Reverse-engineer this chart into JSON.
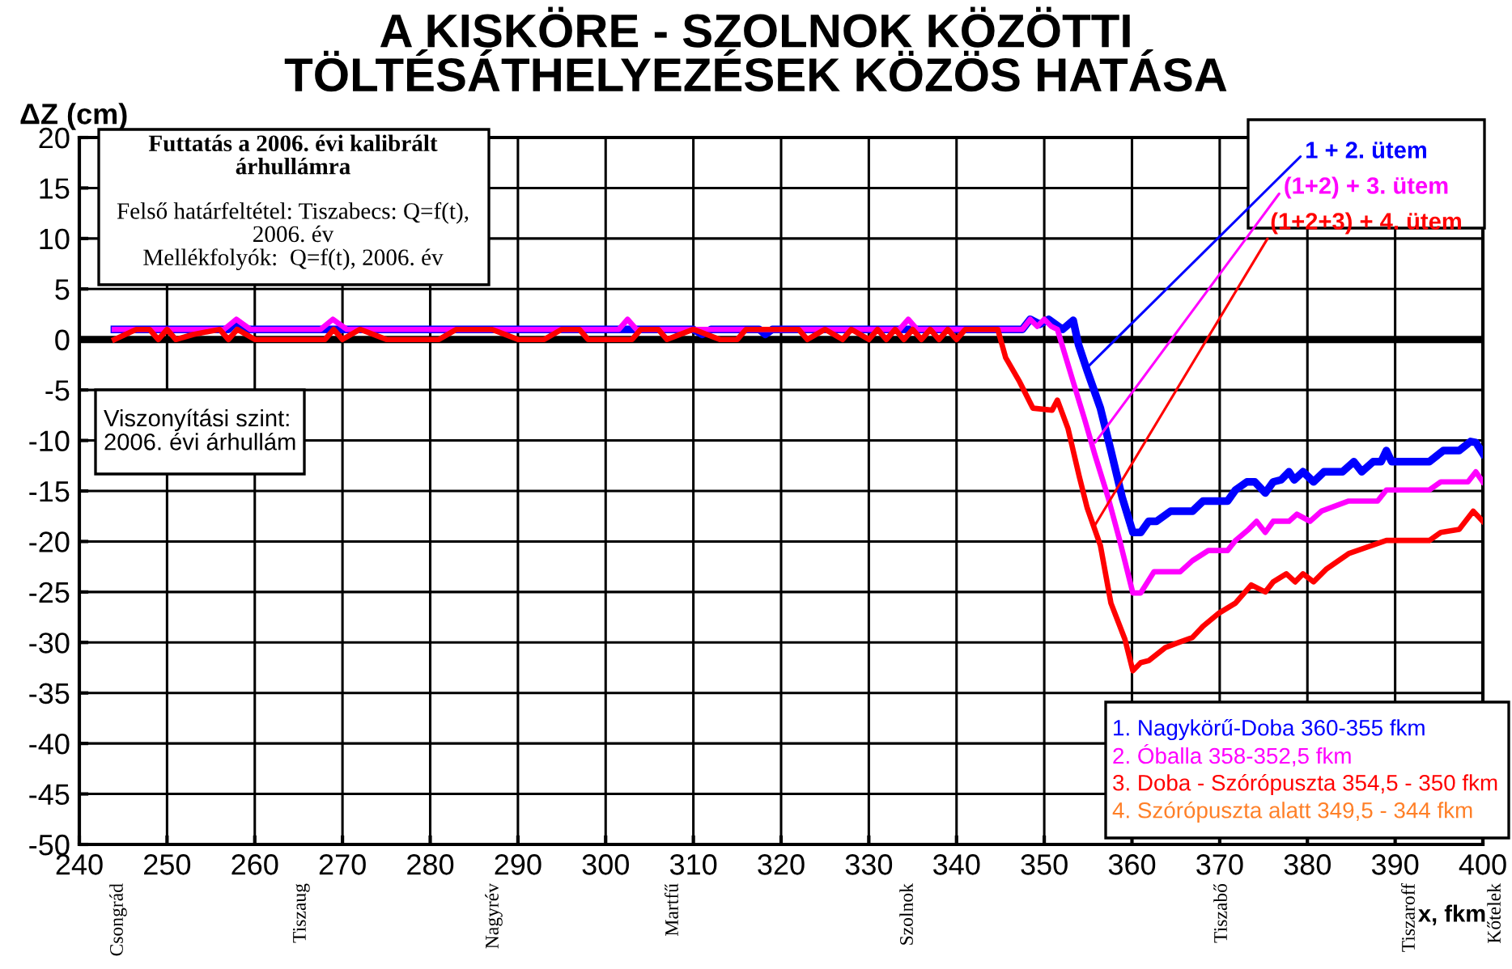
{
  "chart_data": {
    "type": "line",
    "title": "A KISKÖRE - SZOLNOK KÖZÖTTI\nTÖLTÉSÁTHELYEZÉSEK KÖZÖS HATÁSA",
    "xlabel": "x, fkm",
    "ylabel": "ΔZ (cm)",
    "xlim": [
      240,
      400
    ],
    "xticks": [
      240,
      250,
      260,
      270,
      280,
      290,
      300,
      310,
      320,
      330,
      340,
      350,
      360,
      370,
      380,
      390,
      400
    ],
    "ylim": [
      -50,
      20
    ],
    "yticks": [
      -50,
      -45,
      -40,
      -35,
      -30,
      -25,
      -20,
      -15,
      -10,
      -5,
      0,
      5,
      10,
      15,
      20
    ],
    "grid": true,
    "marker": "none",
    "line_style": "solid",
    "ref_lines": [
      {
        "axis": "y",
        "value": 0,
        "color": "#000000"
      }
    ],
    "series": [
      {
        "color": "#0000ff",
        "x": [
          244,
          257,
          257.9,
          259,
          310,
          311,
          312,
          317.5,
          318.2,
          319,
          347.5,
          348.4,
          349.5,
          350.5,
          351.3,
          352.1,
          353.3,
          353.9,
          354.9,
          356.4,
          357.6,
          358.9,
          360.1,
          361,
          361.9,
          362.8,
          364.4,
          366.9,
          368.1,
          370.9,
          371.8,
          373.1,
          374,
          375.2,
          376.1,
          377,
          377.9,
          378.5,
          379.5,
          380.7,
          381.9,
          384,
          385.3,
          386.2,
          387.5,
          388.4,
          389,
          389.6,
          393.9,
          395.5,
          397.3,
          398.6,
          399.2,
          400
        ],
        "values": [
          1,
          1,
          1.8,
          1,
          1,
          0.5,
          1,
          1,
          0.5,
          1,
          1,
          2,
          1.5,
          2,
          1.5,
          1,
          1.9,
          -0.5,
          -3.1,
          -6.8,
          -11,
          -15.7,
          -19.1,
          -19.1,
          -18,
          -18,
          -17,
          -17,
          -16,
          -16,
          -14.9,
          -14.1,
          -14.1,
          -15.2,
          -14.1,
          -13.9,
          -13.1,
          -13.9,
          -13.1,
          -14.1,
          -13.1,
          -13.1,
          -12.1,
          -13.1,
          -12.1,
          -12.1,
          -11,
          -12.1,
          -12.1,
          -11,
          -11,
          -10.1,
          -10.2,
          -11.3
        ]
      },
      {
        "color": "#ff00ff",
        "x": [
          244,
          256.5,
          257.9,
          259.5,
          267.5,
          268.9,
          270.5,
          301.5,
          302.5,
          303.5,
          333.5,
          334.5,
          335.5,
          347.5,
          348.4,
          349.2,
          350,
          350.8,
          351.5,
          352.4,
          353.3,
          354.6,
          355.8,
          357.3,
          358.6,
          360.1,
          361,
          362.5,
          365.5,
          366.9,
          368.7,
          370.9,
          371.8,
          373.3,
          374.2,
          375.2,
          376.1,
          377.9,
          378.8,
          380.3,
          381.6,
          384.7,
          388,
          389,
          393.9,
          395.2,
          398.3,
          399.2,
          400
        ],
        "values": [
          1,
          1,
          2,
          1,
          1,
          2,
          1,
          1,
          2,
          1,
          1,
          2,
          1,
          1,
          2,
          1.3,
          2,
          1.3,
          1,
          -1.6,
          -4.2,
          -7.9,
          -11.5,
          -15.7,
          -19.9,
          -25.1,
          -25.1,
          -23,
          -23,
          -21.9,
          -20.9,
          -20.9,
          -19.9,
          -18.8,
          -18,
          -19.1,
          -18,
          -18,
          -17.3,
          -18,
          -17,
          -16,
          -16,
          -14.9,
          -14.9,
          -14.1,
          -14.1,
          -13.1,
          -14.1
        ]
      },
      {
        "color": "#ff0000",
        "x": [
          244,
          246.5,
          248,
          249,
          250,
          251,
          253,
          256,
          257,
          258,
          260,
          268,
          269,
          270,
          272,
          275,
          281,
          283,
          287,
          290,
          293,
          295,
          297,
          298,
          303,
          304,
          306,
          307,
          310,
          313,
          315,
          316,
          322,
          323,
          325,
          327,
          328,
          330,
          331,
          332,
          333,
          334,
          335,
          336,
          337,
          338,
          339,
          340,
          341,
          344.7,
          345.6,
          347.2,
          348.7,
          350.9,
          351.5,
          352.7,
          354,
          354.9,
          356.4,
          357.6,
          359.2,
          360.1,
          361,
          361.9,
          363.8,
          365.3,
          366.9,
          368.1,
          369.9,
          371.8,
          373.6,
          375.2,
          376.1,
          377.6,
          378.6,
          379.5,
          380.7,
          382.2,
          384.7,
          389,
          393.9,
          395.2,
          397.3,
          398.9,
          400
        ],
        "values": [
          0,
          1,
          1,
          0,
          1,
          0,
          0.5,
          1,
          0,
          1,
          0,
          0,
          1,
          0,
          1,
          0,
          0,
          1,
          1,
          0,
          0,
          1,
          1,
          0,
          0,
          1,
          1,
          0,
          1,
          0,
          0,
          1,
          1,
          0,
          1,
          0,
          1,
          0,
          1,
          0,
          1,
          0,
          1,
          0,
          1,
          0,
          1,
          0,
          1,
          1,
          -1.8,
          -4.2,
          -6.8,
          -7,
          -6,
          -8.8,
          -13.6,
          -16.7,
          -20.4,
          -26.1,
          -29.7,
          -32.8,
          -32,
          -31.8,
          -30.5,
          -30,
          -29.5,
          -28.4,
          -27.1,
          -26.1,
          -24.3,
          -25,
          -24,
          -23.2,
          -24,
          -23.2,
          -24,
          -22.7,
          -21.2,
          -19.9,
          -19.9,
          -19.1,
          -18.8,
          -17,
          -18
        ]
      }
    ],
    "annotations": [
      "Futtatás a 2006. évi kalibrált\nárhullámra",
      "Felső határfeltétel: Tiszabecs: Q=f(t),\n2006. év\nMellékfolyók:  Q=f(t), 2006. év",
      "Viszonyítási szint:\n2006. évi árhullám",
      "1. Nagykörű-Doba 360-355 fkm",
      "2. Óballa 358-352,5 fkm",
      "3. Doba - Szórópuszta 354,5 - 350 fkm",
      "4. Szórópuszta alatt 349,5 - 344 fkm",
      {
        "text": "1 + 2. ütem",
        "x": 355.1,
        "y": -2.6
      },
      {
        "text": "(1+2) + 3. ütem",
        "x": 355.8,
        "y": -10.2
      },
      {
        "text": "(1+2+3) + 4. ütem",
        "x": 355.7,
        "y": -18.5
      },
      "Csongrád",
      "Tiszaug",
      "Nagyrév",
      "Martfű",
      "Szolnok",
      "Tiszabő",
      "Tiszaroff",
      "Kőtelek"
    ]
  }
}
